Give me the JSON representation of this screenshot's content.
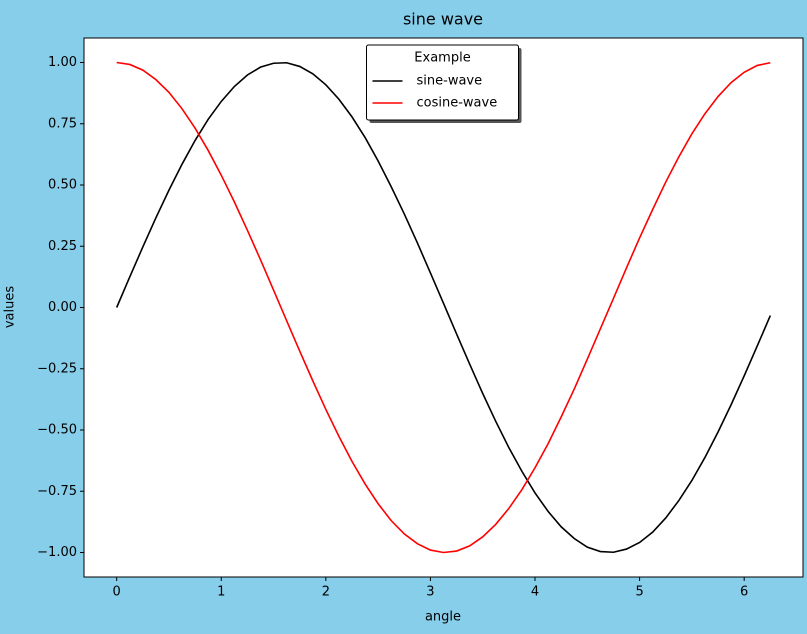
{
  "chart_data": {
    "type": "line",
    "title": "sine wave",
    "x_label": "angle",
    "y_label": "values",
    "legend_title": "Example",
    "legend_position": "upper center",
    "x": [
      0,
      0.125,
      0.25,
      0.375,
      0.5,
      0.625,
      0.75,
      0.875,
      1.0,
      1.125,
      1.25,
      1.375,
      1.5,
      1.625,
      1.75,
      1.875,
      2.0,
      2.125,
      2.25,
      2.375,
      2.5,
      2.625,
      2.75,
      2.875,
      3.0,
      3.125,
      3.25,
      3.375,
      3.5,
      3.625,
      3.75,
      3.875,
      4.0,
      4.125,
      4.25,
      4.375,
      4.5,
      4.625,
      4.75,
      4.875,
      5.0,
      5.125,
      5.25,
      5.375,
      5.5,
      5.625,
      5.75,
      5.875,
      6.0,
      6.125,
      6.25
    ],
    "series": [
      {
        "name": "sine-wave",
        "color": "#000000",
        "values": [
          0,
          0.125,
          0.247,
          0.366,
          0.479,
          0.585,
          0.682,
          0.768,
          0.841,
          0.902,
          0.949,
          0.981,
          0.997,
          0.999,
          0.984,
          0.954,
          0.909,
          0.85,
          0.778,
          0.694,
          0.598,
          0.493,
          0.382,
          0.264,
          0.141,
          0.017,
          -0.108,
          -0.231,
          -0.351,
          -0.465,
          -0.572,
          -0.669,
          -0.757,
          -0.832,
          -0.895,
          -0.943,
          -0.978,
          -0.996,
          -0.999,
          -0.986,
          -0.959,
          -0.917,
          -0.859,
          -0.788,
          -0.706,
          -0.612,
          -0.508,
          -0.397,
          -0.279,
          -0.157,
          -0.033
        ]
      },
      {
        "name": "cosine-wave",
        "color": "#ff0000",
        "values": [
          1,
          0.992,
          0.969,
          0.93,
          0.878,
          0.811,
          0.732,
          0.641,
          0.54,
          0.431,
          0.315,
          0.195,
          0.071,
          -0.054,
          -0.178,
          -0.299,
          -0.416,
          -0.526,
          -0.628,
          -0.72,
          -0.801,
          -0.87,
          -0.924,
          -0.964,
          -0.99,
          -1.0,
          -0.994,
          -0.973,
          -0.936,
          -0.885,
          -0.82,
          -0.743,
          -0.654,
          -0.556,
          -0.447,
          -0.333,
          -0.211,
          -0.087,
          0.037,
          0.162,
          0.284,
          0.4,
          0.512,
          0.615,
          0.709,
          0.791,
          0.861,
          0.918,
          0.96,
          0.988,
          0.999
        ]
      }
    ],
    "xlim": [
      -0.3125,
      6.5625
    ],
    "ylim": [
      -1.1,
      1.1
    ],
    "xticks": [
      0,
      1,
      2,
      3,
      4,
      5,
      6
    ],
    "yticks": [
      {
        "value": -1.0,
        "label": "−1.00"
      },
      {
        "value": -0.75,
        "label": "−0.75"
      },
      {
        "value": -0.5,
        "label": "−0.50"
      },
      {
        "value": -0.25,
        "label": "−0.25"
      },
      {
        "value": 0,
        "label": "0.00"
      },
      {
        "value": 0.25,
        "label": "0.25"
      },
      {
        "value": 0.5,
        "label": "0.50"
      },
      {
        "value": 0.75,
        "label": "0.75"
      },
      {
        "value": 1.0,
        "label": "1.00"
      }
    ],
    "grid": false
  }
}
